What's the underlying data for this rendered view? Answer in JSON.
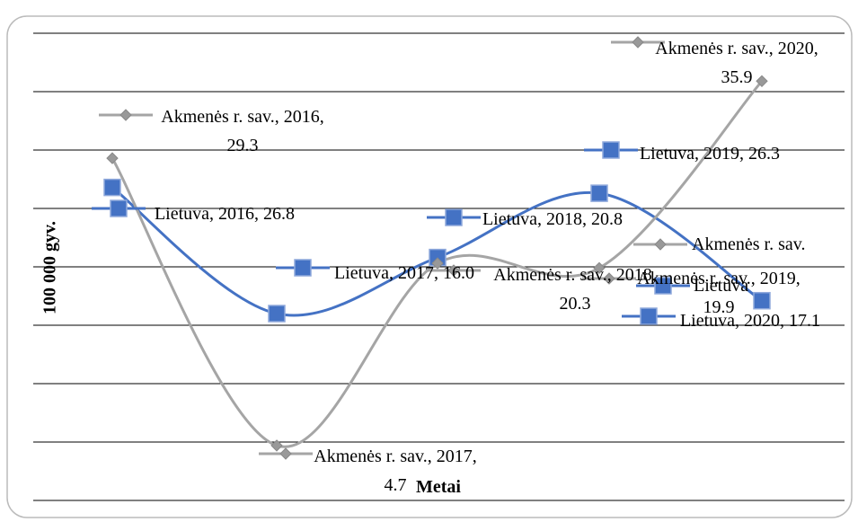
{
  "chart_data": {
    "type": "line",
    "y_label": "100 000 gyv.",
    "x_label": "Metai",
    "categories": [
      "2016",
      "2017",
      "2018",
      "2019",
      "2020"
    ],
    "series": [
      {
        "name": "Lietuva",
        "color": "#4472c4",
        "values": [
          26.8,
          16.0,
          20.8,
          26.3,
          17.1
        ],
        "value_labels": [
          "Lietuva, 2016, 26.8",
          "Lietuva, 2017, 16.0",
          "Lietuva, 2018, 20.8",
          "Lietuva, 2019, 26.3",
          "Lietuva, 2020, 17.1"
        ]
      },
      {
        "name": "Akmenės r. sav.",
        "color": "#a5a5a5",
        "values": [
          29.3,
          4.7,
          20.3,
          19.9,
          35.9
        ],
        "value_labels": [
          "Akmenės r. sav., 2016, 29.3",
          "Akmenės r. sav., 2017, 4.7",
          "Akmenės r. sav., 2018, 20.3",
          "Akmenės r. sav., 2019, 19.9",
          "Akmenės r. sav., 2020, 35.9"
        ]
      }
    ],
    "ylim": [
      0,
      40
    ],
    "yticks": [
      0,
      5,
      10,
      15,
      20,
      25,
      30,
      35,
      40
    ],
    "grid": true,
    "smooth": true,
    "legend": "right"
  }
}
